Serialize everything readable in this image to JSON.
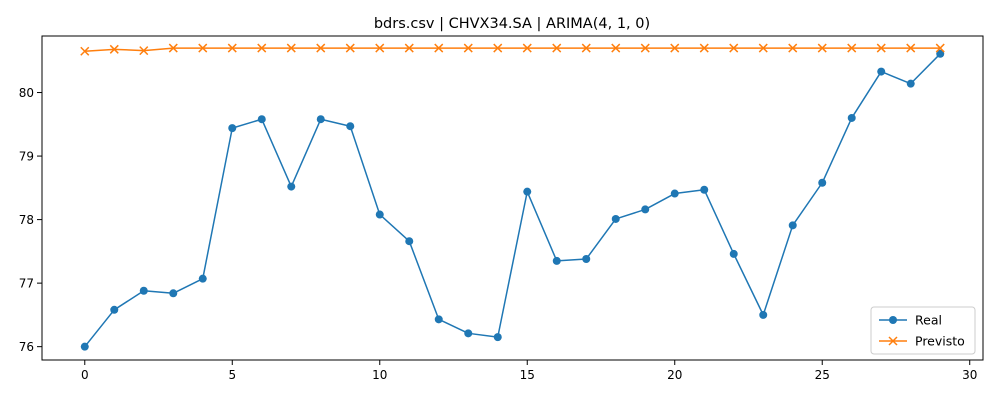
{
  "chart_data": {
    "type": "line",
    "title": "bdrs.csv | CHVX34.SA | ARIMA(4, 1, 0)",
    "xlabel": "",
    "ylabel": "",
    "xlim": [
      -1.45,
      30.45
    ],
    "ylim": [
      75.79,
      80.89
    ],
    "xticks": [
      0,
      5,
      10,
      15,
      20,
      25,
      30
    ],
    "yticks": [
      76,
      77,
      78,
      79,
      80
    ],
    "grid": false,
    "legend_position": "lower-right",
    "x": [
      0,
      1,
      2,
      3,
      4,
      5,
      6,
      7,
      8,
      9,
      10,
      11,
      12,
      13,
      14,
      15,
      16,
      17,
      18,
      19,
      20,
      21,
      22,
      23,
      24,
      25,
      26,
      27,
      28,
      29
    ],
    "series": [
      {
        "name": "Real",
        "color": "#1f77b4",
        "marker": "circle",
        "values": [
          76.0,
          76.58,
          76.88,
          76.84,
          77.07,
          79.44,
          79.58,
          78.52,
          79.58,
          79.47,
          78.08,
          77.66,
          76.43,
          76.21,
          76.15,
          78.44,
          77.35,
          77.38,
          78.01,
          78.16,
          78.41,
          78.47,
          77.46,
          76.5,
          77.91,
          78.58,
          79.6,
          80.33,
          80.14,
          80.61
        ]
      },
      {
        "name": "Previsto",
        "color": "#ff7f0e",
        "marker": "x",
        "values": [
          80.65,
          80.68,
          80.66,
          80.7,
          80.7,
          80.7,
          80.7,
          80.7,
          80.7,
          80.7,
          80.7,
          80.7,
          80.7,
          80.7,
          80.7,
          80.7,
          80.7,
          80.7,
          80.7,
          80.7,
          80.7,
          80.7,
          80.7,
          80.7,
          80.7,
          80.7,
          80.7,
          80.7,
          80.7,
          80.7
        ]
      }
    ]
  }
}
